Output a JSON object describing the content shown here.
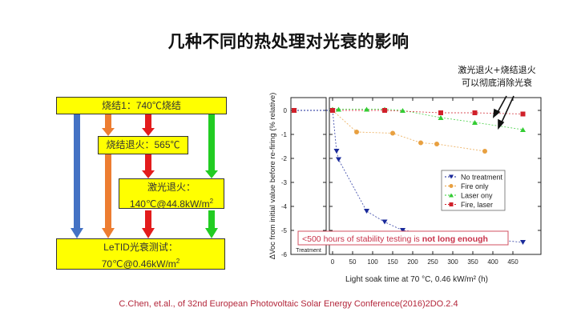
{
  "slide": {
    "title": "几种不同的热处理对光衰的影响",
    "annotation_line1": "激光退火+烧结退火",
    "annotation_line2": "可以彻底消除光衰",
    "citation": "C.Chen, et.al., of 32nd European Photovoltaic Solar Energy Conference(2016)2DO.2.4"
  },
  "flow": {
    "box1": "烧结1：740℃烧结",
    "box2": "烧结退火：565℃",
    "box3_line1": "激光退火：",
    "box3_line2": "140℃@44.8kW/m",
    "box3_sup": "2",
    "box4_line1": "LeTID光衰测试：",
    "box4_line2": "70℃@0.46kW/m",
    "box4_sup": "2",
    "arrow_colors": {
      "blue": "#4472c4",
      "orange": "#ed7d31",
      "red": "#e31c1c",
      "green": "#22cc22"
    }
  },
  "chart_data": {
    "type": "scatter",
    "title": "",
    "xlabel": "Light soak time at 70 °C, 0.46 kW/m² (h)",
    "ylabel": "ΔVoc from initial value before re-firing (% relative)",
    "xlim": [
      0,
      475
    ],
    "ylim": [
      -6,
      0.5
    ],
    "x_ticks": [
      0,
      50,
      100,
      150,
      200,
      250,
      300,
      350,
      400,
      450
    ],
    "y_ticks": [
      0,
      -1,
      -2,
      -3,
      -4,
      -5,
      -6
    ],
    "left_panel_label": "Treatment",
    "callout": "<500 hours of stability testing is ",
    "callout_bold": "not long enough",
    "legend_position": "center-right",
    "series": [
      {
        "name": "No treatment",
        "color": "#1a2a9a",
        "marker": "triangle-down",
        "x": [
          0,
          10,
          15,
          85,
          130,
          175,
          475
        ],
        "y": [
          0,
          -1.7,
          -2.05,
          -4.2,
          -4.65,
          -5.0,
          -5.5
        ]
      },
      {
        "name": "Fire only",
        "color": "#e8a040",
        "marker": "circle",
        "x": [
          0,
          60,
          150,
          220,
          260,
          380
        ],
        "y": [
          0,
          -0.9,
          -0.95,
          -1.35,
          -1.4,
          -1.7
        ]
      },
      {
        "name": "Laser ony",
        "color": "#33cc33",
        "marker": "triangle-up",
        "x": [
          0,
          15,
          85,
          130,
          175,
          270,
          355,
          475
        ],
        "y": [
          0.05,
          0.05,
          0.05,
          0.05,
          0.0,
          -0.3,
          -0.5,
          -0.8
        ]
      },
      {
        "name": "Fire, laser",
        "color": "#d0202a",
        "marker": "square",
        "x": [
          0,
          130,
          270,
          355,
          475
        ],
        "y": [
          0,
          0,
          -0.1,
          -0.1,
          -0.15
        ]
      }
    ]
  }
}
